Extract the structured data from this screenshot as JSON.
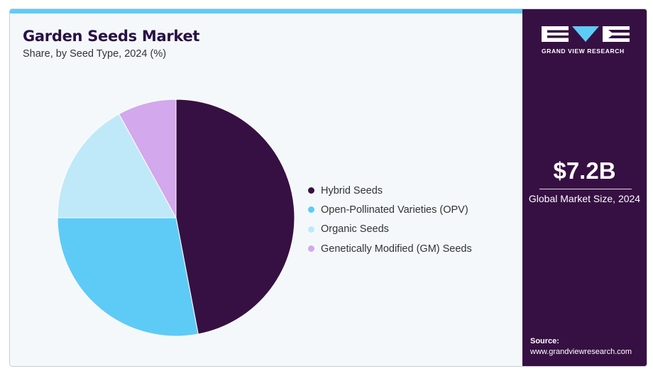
{
  "header": {
    "title": "Garden Seeds Market",
    "subtitle": "Share, by Seed Type, 2024 (%)"
  },
  "chart_data": {
    "type": "pie",
    "title": "Garden Seeds Market",
    "subtitle": "Share, by Seed Type, 2024 (%)",
    "categories": [
      "Hybrid Seeds",
      "Open-Pollinated Varieties (OPV)",
      "Organic Seeds",
      "Genetically Modified (GM) Seeds"
    ],
    "values": [
      47,
      28,
      17,
      8
    ],
    "colors": [
      "#371043",
      "#5ecbf6",
      "#bfe9f8",
      "#d3a8ec"
    ],
    "start_angle_deg": 0,
    "direction": "clockwise",
    "legend_position": "right"
  },
  "sidebar": {
    "logo_text": "GRAND VIEW RESEARCH",
    "market_value": "$7.2B",
    "market_label": "Global Market Size, 2024",
    "source_label": "Source:",
    "source_url": "www.grandviewresearch.com"
  },
  "colors": {
    "brand_dark": "#371043",
    "accent": "#5ecbf6",
    "background": "#f4f8fb"
  }
}
